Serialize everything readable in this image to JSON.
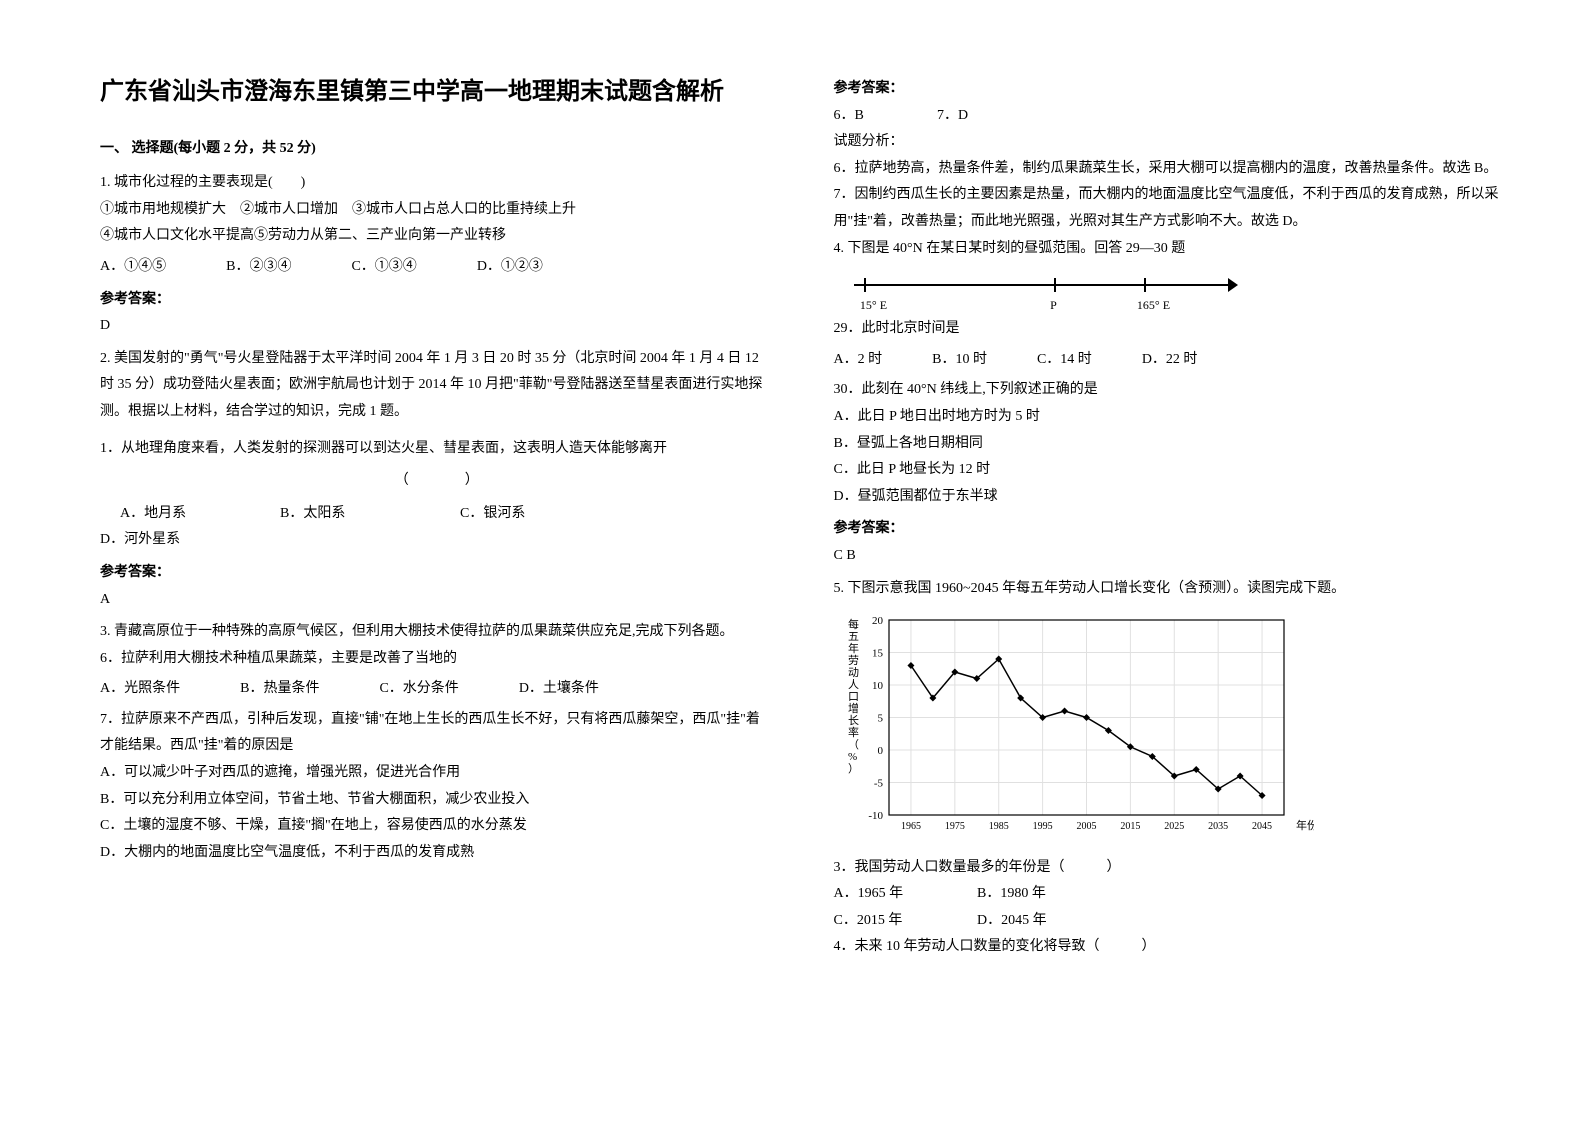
{
  "title": "广东省汕头市澄海东里镇第三中学高一地理期末试题含解析",
  "section1": "一、 选择题(每小题 2 分，共 52 分)",
  "q1": {
    "stem": "1. 城市化过程的主要表现是(　　)",
    "line2": "①城市用地规模扩大　②城市人口增加　③城市人口占总人口的比重持续上升",
    "line3": "④城市人口文化水平提高⑤劳动力从第二、三产业向第一产业转移",
    "oA": "A．①④⑤",
    "oB": "B．②③④",
    "oC": "C．①③④",
    "oD": "D．①②③",
    "ansLabel": "参考答案：",
    "ans": "D"
  },
  "q2": {
    "stem": "2. 美国发射的\"勇气\"号火星登陆器于太平洋时间 2004 年 1 月 3 日 20 时 35 分（北京时间 2004 年 1 月 4 日 12 时 35 分）成功登陆火星表面；欧洲宇航局也计划于 2014 年 10 月把\"菲勒\"号登陆器送至彗星表面进行实地探测。根据以上材料，结合学过的知识，完成 1 题。",
    "sub": "1．从地理角度来看，人类发射的探测器可以到达火星、彗星表面，这表明人造天体能够离开",
    "paren": "（　　　　）",
    "oA": "A．地月系",
    "oB": "B．太阳系",
    "oC": "C．银河系",
    "oD": "D．河外星系",
    "ansLabel": "参考答案：",
    "ans": "A"
  },
  "q3": {
    "stem": "3. 青藏高原位于一种特殊的高原气候区，但利用大棚技术使得拉萨的瓜果蔬菜供应充足,完成下列各题。",
    "s6": "6．拉萨利用大棚技术种植瓜果蔬菜，主要是改善了当地的",
    "s6A": "A．光照条件",
    "s6B": "B．热量条件",
    "s6C": "C．水分条件",
    "s6D": "D．土壤条件",
    "s7": "7．拉萨原来不产西瓜，引种后发现，直接\"铺\"在地上生长的西瓜生长不好，只有将西瓜藤架空，西瓜\"挂\"着才能结果。西瓜\"挂\"着的原因是",
    "s7A": "A．可以减少叶子对西瓜的遮掩，增强光照，促进光合作用",
    "s7B": "B．可以充分利用立体空间，节省土地、节省大棚面积，减少农业投入",
    "s7C": "C．土壤的湿度不够、干燥，直接\"搁\"在地上，容易使西瓜的水分蒸发",
    "s7D": "D．大棚内的地面温度比空气温度低，不利于西瓜的发育成熟"
  },
  "right": {
    "ansLabel": "参考答案：",
    "ans6": "6．B",
    "ans7": "7．D",
    "analTitle": "试题分析：",
    "anal6": "6．拉萨地势高，热量条件差，制约瓜果蔬菜生长，采用大棚可以提高棚内的温度，改善热量条件。故选 B。",
    "anal7": "7．因制约西瓜生长的主要因素是热量，而大棚内的地面温度比空气温度低，不利于西瓜的发育成熟，所以采用\"挂\"着，改善热量；而此地光照强，光照对其生产方式影响不大。故选 D。"
  },
  "q4": {
    "stem": "4. 下图是 40°N 在某日某时刻的昼弧范围。回答 29—30 题",
    "tick1": "15° E",
    "tickP": "P",
    "tick2": "165° E",
    "q29": "29．此时北京时间是",
    "q29A": "A．2 时",
    "q29B": "B．10 时",
    "q29C": "C．14 时",
    "q29D": "D．22 时",
    "q30": "30．此刻在 40°N 纬线上,下列叙述正确的是",
    "q30A": "A．此日 P 地日出时地方时为 5 时",
    "q30B": "B．昼弧上各地日期相同",
    "q30C": "C．此日 P 地昼长为 12 时",
    "q30D": "D．昼弧范围都位于东半球",
    "ansLabel": "参考答案：",
    "ans": "C B"
  },
  "q5": {
    "stem": "5. 下图示意我国 1960~2045 年每五年劳动人口增长变化（含预测）。读图完成下题。",
    "chart": {
      "type": "line",
      "ylabel": "每五年劳动人口增长率（%）",
      "xlabel": "年份",
      "xticks": [
        "1965",
        "1975",
        "1985",
        "1995",
        "2005",
        "2015",
        "2025",
        "2035",
        "2045"
      ],
      "yticks": [
        -10,
        -5,
        0,
        5,
        10,
        15,
        20
      ],
      "ylim": [
        -10,
        20
      ],
      "line_color": "#000000",
      "marker": "diamond",
      "points": [
        [
          1965,
          13
        ],
        [
          1970,
          8
        ],
        [
          1975,
          12
        ],
        [
          1980,
          11
        ],
        [
          1985,
          14
        ],
        [
          1990,
          8
        ],
        [
          1995,
          5
        ],
        [
          2000,
          6
        ],
        [
          2005,
          5
        ],
        [
          2010,
          3
        ],
        [
          2015,
          0.5
        ],
        [
          2020,
          -1
        ],
        [
          2025,
          -4
        ],
        [
          2030,
          -3
        ],
        [
          2035,
          -6
        ],
        [
          2040,
          -4
        ],
        [
          2045,
          -7
        ]
      ],
      "grid_color": "#e0e0e0",
      "axis_color": "#000000"
    },
    "s3": "3．我国劳动人口数量最多的年份是（　　　）",
    "s3A": "A．1965 年",
    "s3B": "B．1980 年",
    "s3C": "C．2015 年",
    "s3D": "D．2045 年",
    "s4": "4．未来 10 年劳动人口数量的变化将导致（　　　）"
  }
}
